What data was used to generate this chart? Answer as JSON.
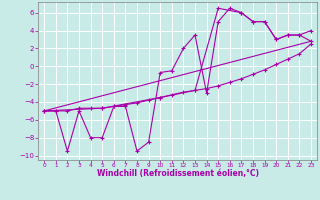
{
  "xlabel": "Windchill (Refroidissement éolien,°C)",
  "xlim": [
    -0.5,
    23.5
  ],
  "ylim": [
    -10.5,
    7.2
  ],
  "yticks": [
    -10,
    -8,
    -6,
    -4,
    -2,
    0,
    2,
    4,
    6
  ],
  "xticks": [
    0,
    1,
    2,
    3,
    4,
    5,
    6,
    7,
    8,
    9,
    10,
    11,
    12,
    13,
    14,
    15,
    16,
    17,
    18,
    19,
    20,
    21,
    22,
    23
  ],
  "bg_color": "#c8ebe8",
  "line_color": "#aa00aa",
  "grid_color": "#b0d8d4",
  "line1_x": [
    0,
    1,
    2,
    3,
    4,
    5,
    6,
    7,
    8,
    9,
    10,
    11,
    12,
    13,
    14,
    15,
    16,
    17,
    18,
    19,
    20,
    21,
    22,
    23
  ],
  "line1_y": [
    -5.0,
    -5.0,
    -9.5,
    -5.0,
    -8.0,
    -8.0,
    -4.5,
    -4.5,
    -9.5,
    -8.5,
    -0.7,
    -0.5,
    2.0,
    3.5,
    -3.0,
    5.0,
    6.5,
    6.0,
    5.0,
    5.0,
    3.0,
    3.5,
    3.5,
    4.0
  ],
  "line2_x": [
    0,
    1,
    2,
    3,
    4,
    5,
    6,
    7,
    8,
    9,
    10,
    11,
    12,
    13,
    14,
    15,
    16,
    17,
    18,
    19,
    20,
    21,
    22,
    23
  ],
  "line2_y": [
    -5.0,
    -5.0,
    -5.0,
    -4.7,
    -4.7,
    -4.7,
    -4.5,
    -4.3,
    -4.1,
    -3.8,
    -3.5,
    -3.2,
    -2.9,
    -2.7,
    -2.5,
    -2.2,
    -1.8,
    -1.4,
    -0.9,
    -0.4,
    0.2,
    0.8,
    1.4,
    2.5
  ],
  "line3_x": [
    0,
    5,
    10,
    13,
    15,
    17,
    18,
    19,
    20,
    21,
    22,
    23
  ],
  "line3_y": [
    -5.0,
    -4.7,
    -3.5,
    -2.7,
    6.5,
    6.0,
    5.0,
    5.0,
    3.0,
    3.5,
    3.5,
    2.8
  ],
  "line4_x": [
    0,
    23
  ],
  "line4_y": [
    -5.0,
    2.8
  ]
}
